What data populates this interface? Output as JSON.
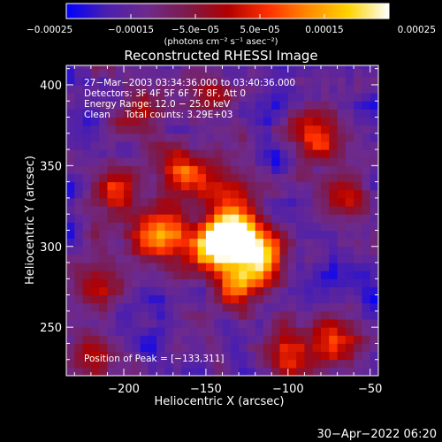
{
  "chart_data": {
    "type": "heatmap",
    "title": "Reconstructed RHESSI Image",
    "xlabel": "Heliocentric X (arcsec)",
    "ylabel": "Heliocentric Y (arcsec)",
    "xlim": [
      -235,
      -45
    ],
    "ylim": [
      220,
      412
    ],
    "xticks": [
      -200,
      -150,
      -100,
      -50
    ],
    "xtick_labels": [
      "−200",
      "−150",
      "−100",
      "−50"
    ],
    "yticks": [
      250,
      300,
      350,
      400
    ],
    "ytick_labels": [
      "250",
      "300",
      "350",
      "400"
    ],
    "colorbar": {
      "range": [
        -0.00025,
        0.00025
      ],
      "tick_labels": [
        "−0.00025",
        "−0.00015",
        "−5.0e−05",
        "5.0e−05",
        "0.00015",
        "0.00025"
      ],
      "unit_label": "(photons cm⁻² s⁻¹ asec⁻²)",
      "colormap": [
        "#0000ff",
        "#4b1fae",
        "#6e2a8c",
        "#7d1a4a",
        "#b00000",
        "#ff3000",
        "#ff8a00",
        "#ffd400",
        "#ffffff"
      ]
    },
    "annotations": [
      "27−Mar−2003 03:34:36.000 to 03:40:36.000",
      "Detectors: 3F 4F 5F 6F 7F 8F, Att 0",
      "Energy Range: 12.0 − 25.0 keV",
      "Clean     Total counts: 3.29E+03"
    ],
    "peak_label": "Position of Peak = [−133,311]",
    "peak": [
      -133,
      311
    ],
    "hotspots": [
      {
        "x": -133,
        "y": 311,
        "value": 1.0
      },
      {
        "x": -145,
        "y": 300,
        "value": 0.75
      },
      {
        "x": -115,
        "y": 298,
        "value": 0.7
      },
      {
        "x": -128,
        "y": 278,
        "value": 0.65
      },
      {
        "x": -178,
        "y": 306,
        "value": 0.7
      },
      {
        "x": -165,
        "y": 347,
        "value": 0.55
      },
      {
        "x": -140,
        "y": 336,
        "value": 0.45
      },
      {
        "x": -82,
        "y": 368,
        "value": 0.6
      },
      {
        "x": -62,
        "y": 330,
        "value": 0.45
      },
      {
        "x": -206,
        "y": 332,
        "value": 0.5
      },
      {
        "x": -190,
        "y": 381,
        "value": 0.35
      },
      {
        "x": -99,
        "y": 232,
        "value": 0.55
      },
      {
        "x": -73,
        "y": 242,
        "value": 0.45
      },
      {
        "x": -210,
        "y": 278,
        "value": 0.4
      },
      {
        "x": -223,
        "y": 235,
        "value": 0.35
      },
      {
        "x": -145,
        "y": 392,
        "value": 0.35
      }
    ]
  },
  "footer_timestamp": "30−Apr−2022 06:20"
}
